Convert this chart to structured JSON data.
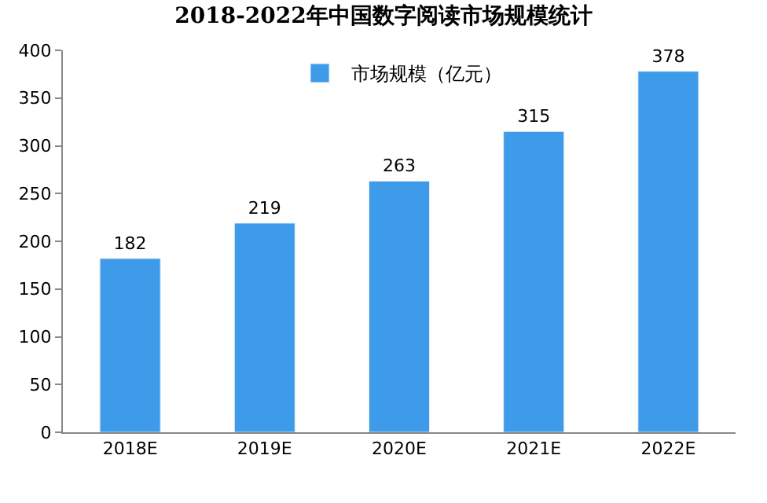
{
  "chart_data": {
    "type": "bar",
    "title": "2018-2022年中国数字阅读市场规模统计",
    "categories": [
      "2018E",
      "2019E",
      "2020E",
      "2021E",
      "2022E"
    ],
    "series": [
      {
        "name": "市场规模（亿元）",
        "color": "#3d9be9",
        "values": [
          182,
          219,
          263,
          315,
          378
        ]
      }
    ],
    "ylim": [
      0,
      400
    ],
    "yticks": [
      0,
      50,
      100,
      150,
      200,
      250,
      300,
      350,
      400
    ],
    "data_labels": true,
    "legend": "top"
  }
}
